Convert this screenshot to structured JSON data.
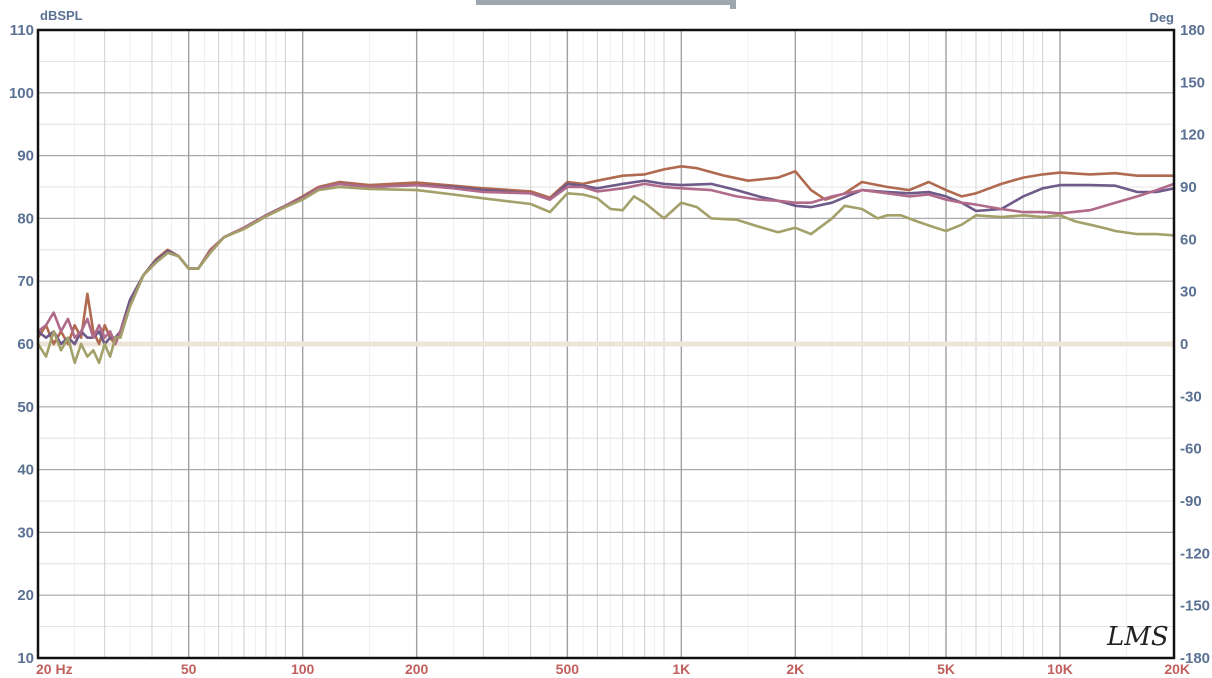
{
  "chart_data": {
    "type": "line",
    "x_scale": "log",
    "xlim": [
      20,
      20000
    ],
    "ylim": [
      10,
      110
    ],
    "y2lim": [
      -180,
      180
    ],
    "ylabel": "dBSPL",
    "y2label": "Deg",
    "grid": true,
    "legend": "none",
    "logo": "LMS",
    "yticks": [
      110,
      100,
      90,
      80,
      70,
      60,
      50,
      40,
      30,
      20,
      10
    ],
    "y2ticks": [
      180,
      150,
      120,
      90,
      60,
      30,
      0,
      -30,
      -60,
      -90,
      -120,
      -150,
      -180
    ],
    "xticks": [
      {
        "value": 20,
        "label": "20  Hz"
      },
      {
        "value": 50,
        "label": "50"
      },
      {
        "value": 100,
        "label": "100"
      },
      {
        "value": 200,
        "label": "200"
      },
      {
        "value": 500,
        "label": "500"
      },
      {
        "value": 1000,
        "label": "1K"
      },
      {
        "value": 2000,
        "label": "2K"
      },
      {
        "value": 5000,
        "label": "5K"
      },
      {
        "value": 10000,
        "label": "10K"
      },
      {
        "value": 20000,
        "label": "20K"
      }
    ],
    "reference_line": {
      "axis": "y2",
      "value": 0,
      "color": "#ece4d8"
    },
    "series": [
      {
        "color": "#b06a4f",
        "points": [
          [
            20,
            61
          ],
          [
            21,
            63
          ],
          [
            22,
            60
          ],
          [
            23,
            62
          ],
          [
            24,
            60
          ],
          [
            25,
            63
          ],
          [
            26,
            61
          ],
          [
            27,
            68
          ],
          [
            28,
            62
          ],
          [
            29,
            60
          ],
          [
            30,
            63
          ],
          [
            31,
            61
          ],
          [
            32,
            60
          ],
          [
            33,
            62
          ],
          [
            35,
            67
          ],
          [
            38,
            71
          ],
          [
            41,
            73.5
          ],
          [
            44,
            75
          ],
          [
            47,
            74
          ],
          [
            50,
            72
          ],
          [
            53,
            72
          ],
          [
            57,
            75
          ],
          [
            62,
            77
          ],
          [
            70,
            78.5
          ],
          [
            80,
            80.5
          ],
          [
            90,
            82
          ],
          [
            100,
            83.5
          ],
          [
            110,
            85
          ],
          [
            125,
            85.8
          ],
          [
            150,
            85.3
          ],
          [
            200,
            85.7
          ],
          [
            250,
            85.2
          ],
          [
            300,
            84.8
          ],
          [
            400,
            84.3
          ],
          [
            450,
            83.3
          ],
          [
            500,
            85.8
          ],
          [
            550,
            85.5
          ],
          [
            600,
            86
          ],
          [
            700,
            86.8
          ],
          [
            800,
            87
          ],
          [
            900,
            87.8
          ],
          [
            1000,
            88.3
          ],
          [
            1100,
            88
          ],
          [
            1300,
            86.8
          ],
          [
            1500,
            86
          ],
          [
            1800,
            86.5
          ],
          [
            2000,
            87.5
          ],
          [
            2200,
            84.5
          ],
          [
            2400,
            83
          ],
          [
            2700,
            84
          ],
          [
            3000,
            85.8
          ],
          [
            3500,
            85
          ],
          [
            4000,
            84.5
          ],
          [
            4500,
            85.8
          ],
          [
            5000,
            84.5
          ],
          [
            5500,
            83.5
          ],
          [
            6000,
            84
          ],
          [
            7000,
            85.5
          ],
          [
            8000,
            86.5
          ],
          [
            9000,
            87
          ],
          [
            10000,
            87.3
          ],
          [
            12000,
            87
          ],
          [
            14000,
            87.2
          ],
          [
            16000,
            86.8
          ],
          [
            18000,
            86.8
          ],
          [
            20000,
            86.8
          ]
        ]
      },
      {
        "color": "#6f5a8a",
        "points": [
          [
            20,
            62
          ],
          [
            21,
            61
          ],
          [
            22,
            62
          ],
          [
            23,
            60
          ],
          [
            24,
            61
          ],
          [
            25,
            60
          ],
          [
            26,
            62
          ],
          [
            27,
            61
          ],
          [
            28,
            61
          ],
          [
            29,
            62
          ],
          [
            30,
            60
          ],
          [
            31,
            61
          ],
          [
            32,
            61
          ],
          [
            33,
            62
          ],
          [
            35,
            67
          ],
          [
            38,
            71
          ],
          [
            41,
            73.3
          ],
          [
            44,
            74.8
          ],
          [
            47,
            74
          ],
          [
            50,
            72
          ],
          [
            53,
            72
          ],
          [
            57,
            74.8
          ],
          [
            62,
            77
          ],
          [
            70,
            78.5
          ],
          [
            80,
            80.5
          ],
          [
            90,
            82
          ],
          [
            100,
            83.3
          ],
          [
            110,
            84.8
          ],
          [
            125,
            85.5
          ],
          [
            150,
            85
          ],
          [
            200,
            85.3
          ],
          [
            250,
            85
          ],
          [
            300,
            84.5
          ],
          [
            400,
            84
          ],
          [
            450,
            83
          ],
          [
            500,
            85.5
          ],
          [
            550,
            85.2
          ],
          [
            600,
            84.8
          ],
          [
            700,
            85.5
          ],
          [
            800,
            86
          ],
          [
            900,
            85.5
          ],
          [
            1000,
            85.3
          ],
          [
            1200,
            85.5
          ],
          [
            1400,
            84.5
          ],
          [
            1600,
            83.5
          ],
          [
            1800,
            82.8
          ],
          [
            2000,
            82
          ],
          [
            2200,
            81.8
          ],
          [
            2500,
            82.5
          ],
          [
            3000,
            84.5
          ],
          [
            3500,
            84.2
          ],
          [
            4000,
            84
          ],
          [
            4500,
            84.2
          ],
          [
            5000,
            83.5
          ],
          [
            5500,
            82.5
          ],
          [
            6000,
            81.2
          ],
          [
            7000,
            81.5
          ],
          [
            8000,
            83.5
          ],
          [
            9000,
            84.8
          ],
          [
            10000,
            85.3
          ],
          [
            12000,
            85.3
          ],
          [
            14000,
            85.2
          ],
          [
            16000,
            84.2
          ],
          [
            18000,
            84.2
          ],
          [
            20000,
            84.8
          ]
        ]
      },
      {
        "color": "#b06a8a",
        "points": [
          [
            20,
            62
          ],
          [
            21,
            63
          ],
          [
            22,
            65
          ],
          [
            23,
            62
          ],
          [
            24,
            64
          ],
          [
            25,
            61
          ],
          [
            26,
            62
          ],
          [
            27,
            64
          ],
          [
            28,
            61
          ],
          [
            29,
            63
          ],
          [
            30,
            61
          ],
          [
            31,
            62
          ],
          [
            32,
            60
          ],
          [
            33,
            62
          ],
          [
            35,
            66
          ],
          [
            38,
            71
          ],
          [
            41,
            73
          ],
          [
            44,
            74.5
          ],
          [
            47,
            74
          ],
          [
            50,
            72
          ],
          [
            53,
            72
          ],
          [
            57,
            74.8
          ],
          [
            62,
            77
          ],
          [
            70,
            78.5
          ],
          [
            80,
            80.5
          ],
          [
            90,
            82
          ],
          [
            100,
            83.2
          ],
          [
            110,
            84.8
          ],
          [
            125,
            85.5
          ],
          [
            150,
            85
          ],
          [
            200,
            85.3
          ],
          [
            250,
            84.8
          ],
          [
            300,
            84.2
          ],
          [
            400,
            84
          ],
          [
            450,
            83
          ],
          [
            500,
            85
          ],
          [
            550,
            85
          ],
          [
            600,
            84.3
          ],
          [
            700,
            84.8
          ],
          [
            800,
            85.5
          ],
          [
            900,
            85
          ],
          [
            1000,
            84.8
          ],
          [
            1200,
            84.5
          ],
          [
            1400,
            83.5
          ],
          [
            1600,
            83
          ],
          [
            1800,
            82.8
          ],
          [
            2000,
            82.5
          ],
          [
            2200,
            82.5
          ],
          [
            2500,
            83.5
          ],
          [
            3000,
            84.5
          ],
          [
            3500,
            84
          ],
          [
            4000,
            83.5
          ],
          [
            4500,
            83.8
          ],
          [
            5000,
            83
          ],
          [
            5500,
            82.5
          ],
          [
            6000,
            82.2
          ],
          [
            7000,
            81.5
          ],
          [
            8000,
            81
          ],
          [
            9000,
            81
          ],
          [
            10000,
            80.8
          ],
          [
            12000,
            81.3
          ],
          [
            14000,
            82.5
          ],
          [
            16000,
            83.5
          ],
          [
            18000,
            84.5
          ],
          [
            20000,
            85.5
          ]
        ]
      },
      {
        "color": "#a3a06a",
        "points": [
          [
            20,
            60
          ],
          [
            21,
            58
          ],
          [
            22,
            62
          ],
          [
            23,
            59
          ],
          [
            24,
            61
          ],
          [
            25,
            57
          ],
          [
            26,
            60
          ],
          [
            27,
            58
          ],
          [
            28,
            59
          ],
          [
            29,
            57
          ],
          [
            30,
            60
          ],
          [
            31,
            58
          ],
          [
            32,
            61
          ],
          [
            33,
            61
          ],
          [
            35,
            66
          ],
          [
            38,
            71
          ],
          [
            41,
            73
          ],
          [
            44,
            74.5
          ],
          [
            47,
            74
          ],
          [
            50,
            72
          ],
          [
            53,
            72
          ],
          [
            57,
            74.5
          ],
          [
            62,
            77
          ],
          [
            70,
            78.3
          ],
          [
            80,
            80.3
          ],
          [
            90,
            81.8
          ],
          [
            100,
            83
          ],
          [
            110,
            84.5
          ],
          [
            125,
            85
          ],
          [
            150,
            84.7
          ],
          [
            200,
            84.5
          ],
          [
            250,
            83.8
          ],
          [
            300,
            83.2
          ],
          [
            400,
            82.3
          ],
          [
            450,
            81
          ],
          [
            500,
            84
          ],
          [
            550,
            83.8
          ],
          [
            600,
            83.2
          ],
          [
            650,
            81.5
          ],
          [
            700,
            81.3
          ],
          [
            750,
            83.5
          ],
          [
            800,
            82.5
          ],
          [
            900,
            80
          ],
          [
            1000,
            82.5
          ],
          [
            1100,
            81.8
          ],
          [
            1200,
            80
          ],
          [
            1400,
            79.8
          ],
          [
            1600,
            78.7
          ],
          [
            1800,
            77.8
          ],
          [
            2000,
            78.5
          ],
          [
            2200,
            77.5
          ],
          [
            2500,
            80
          ],
          [
            2700,
            82
          ],
          [
            3000,
            81.5
          ],
          [
            3300,
            80
          ],
          [
            3500,
            80.5
          ],
          [
            3800,
            80.5
          ],
          [
            4200,
            79.5
          ],
          [
            4700,
            78.5
          ],
          [
            5000,
            78
          ],
          [
            5500,
            79
          ],
          [
            6000,
            80.5
          ],
          [
            7000,
            80.2
          ],
          [
            8000,
            80.5
          ],
          [
            9000,
            80.2
          ],
          [
            10000,
            80.5
          ],
          [
            11000,
            79.5
          ],
          [
            12000,
            79
          ],
          [
            13000,
            78.5
          ],
          [
            14000,
            78
          ],
          [
            16000,
            77.5
          ],
          [
            18000,
            77.5
          ],
          [
            20000,
            77.3
          ]
        ]
      }
    ]
  }
}
